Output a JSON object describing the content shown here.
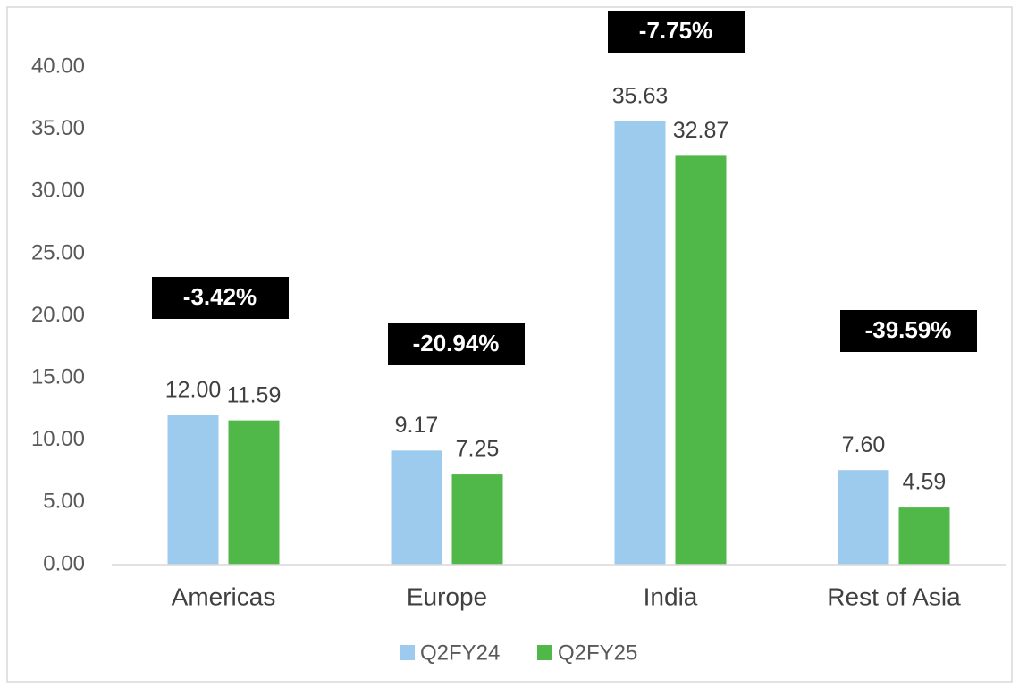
{
  "chart_data": {
    "type": "bar",
    "categories": [
      "Americas",
      "Europe",
      "India",
      "Rest of Asia"
    ],
    "series": [
      {
        "name": "Q2FY24",
        "color": "#9DCBEE",
        "values": [
          12.0,
          9.17,
          35.63,
          7.6
        ],
        "value_labels": [
          "12.00",
          "9.17",
          "35.63",
          "7.60"
        ]
      },
      {
        "name": "Q2FY25",
        "color": "#50B848",
        "values": [
          11.59,
          7.25,
          32.87,
          4.59
        ],
        "value_labels": [
          "11.59",
          "7.25",
          "32.87",
          "4.59"
        ]
      }
    ],
    "annotations": [
      "-3.42%",
      "-20.94%",
      "-7.75%",
      "-39.59%"
    ],
    "ylim": [
      0,
      45
    ],
    "yticks": [
      {
        "value": 0,
        "label": "0.00"
      },
      {
        "value": 5,
        "label": "5.00"
      },
      {
        "value": 10,
        "label": "10.00"
      },
      {
        "value": 15,
        "label": "15.00"
      },
      {
        "value": 20,
        "label": "20.00"
      },
      {
        "value": 25,
        "label": "25.00"
      },
      {
        "value": 30,
        "label": "30.00"
      },
      {
        "value": 35,
        "label": "35.00"
      },
      {
        "value": 40,
        "label": "40.00"
      }
    ],
    "grid": false,
    "legend": "bottom"
  }
}
